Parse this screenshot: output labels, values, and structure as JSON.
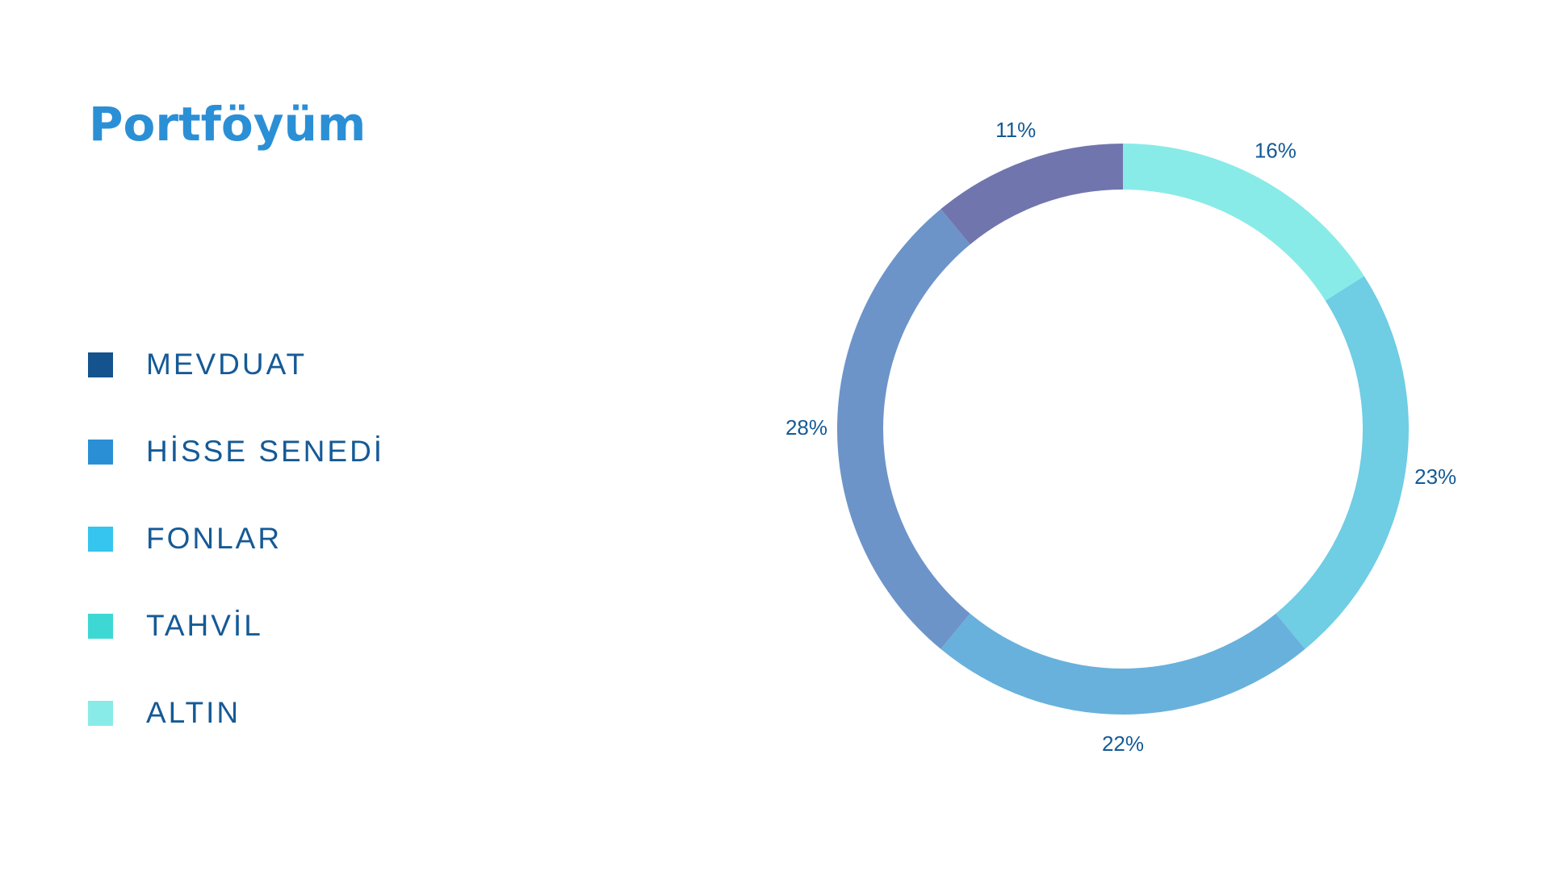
{
  "title": "Portföyüm",
  "legend": [
    {
      "label": "MEVDUAT",
      "color": "#14538d"
    },
    {
      "label": "HİSSE SENEDİ",
      "color": "#2b8fd6"
    },
    {
      "label": "FONLAR",
      "color": "#36c5ee"
    },
    {
      "label": "TAHVİL",
      "color": "#3ed8d4"
    },
    {
      "label": "ALTIN",
      "color": "#88ebe8"
    }
  ],
  "chart_data": {
    "type": "pie",
    "title": "",
    "slices": [
      {
        "value": 16,
        "label": "16%",
        "color": "#88ebe8"
      },
      {
        "value": 23,
        "label": "23%",
        "color": "#6fcde4"
      },
      {
        "value": 22,
        "label": "22%",
        "color": "#68b1dc"
      },
      {
        "value": 28,
        "label": "28%",
        "color": "#6d94c9"
      },
      {
        "value": 11,
        "label": "11%",
        "color": "#7175ae"
      }
    ]
  }
}
